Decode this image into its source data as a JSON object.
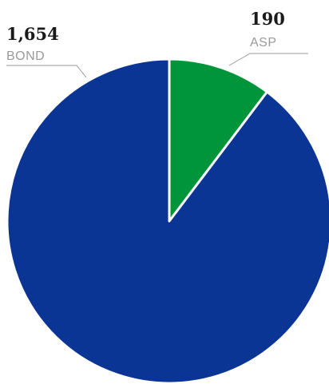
{
  "chart_data": {
    "type": "pie",
    "slices": [
      {
        "label": "ASP",
        "value": 190,
        "value_text": "190",
        "color": "#00953b"
      },
      {
        "label": "BOND",
        "value": 1654,
        "value_text": "1,654",
        "color": "#0a3595"
      }
    ],
    "start": "12 o'clock",
    "direction": "clockwise",
    "legend": "none"
  }
}
